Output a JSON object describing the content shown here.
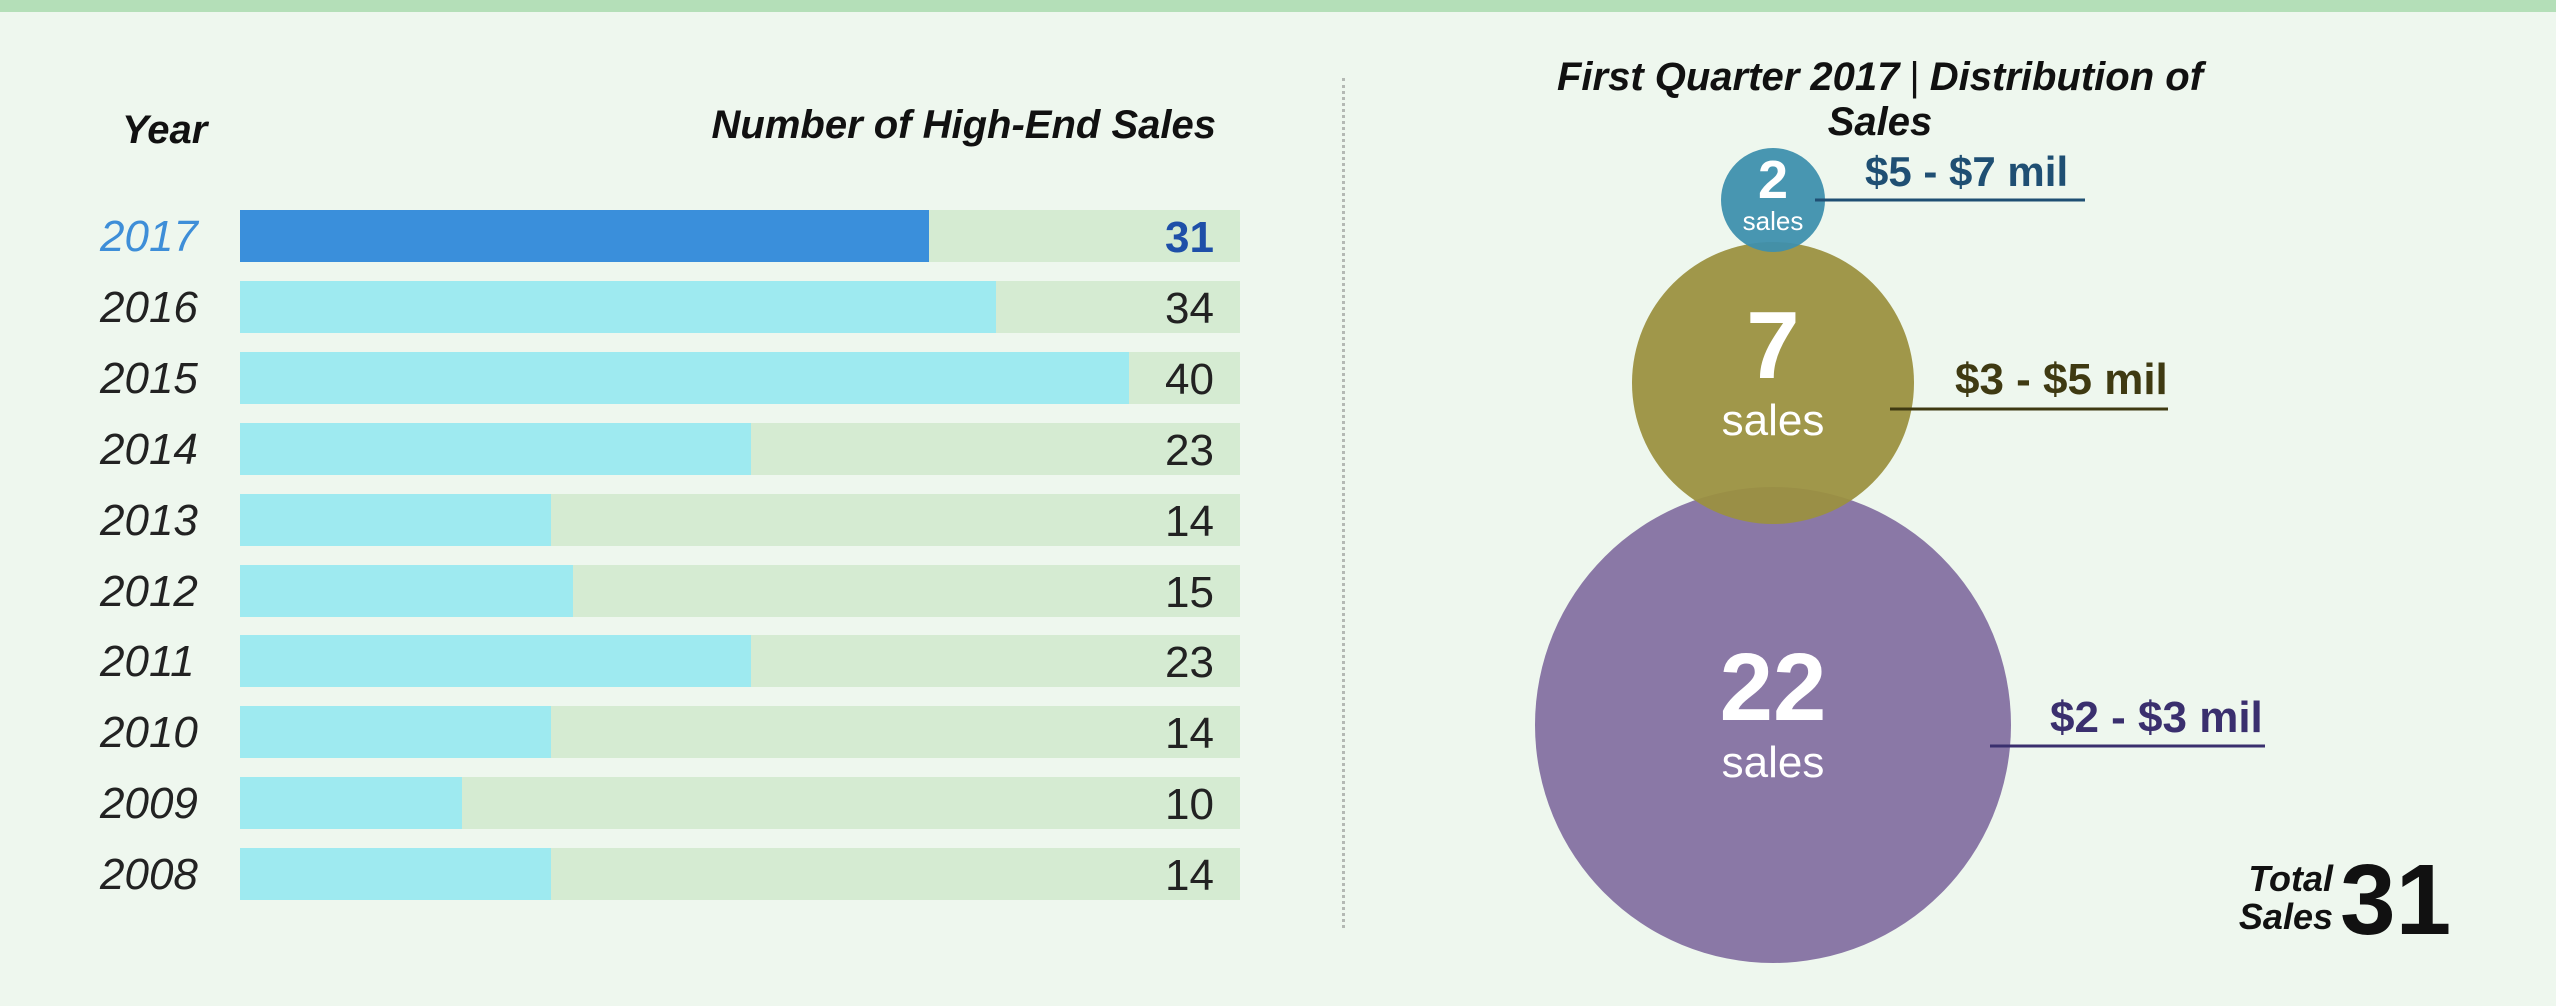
{
  "colors": {
    "background": "#eef7ee",
    "track": "#d5ebd2",
    "bar": "#9eeaf0",
    "bar_highlight": "#3a8fdb",
    "bubble_small": "#3e8fad",
    "bubble_medium": "#9b9140",
    "bubble_large": "#8a78a6"
  },
  "headers": {
    "year": "Year",
    "sales": "Number of High-End Sales"
  },
  "chart_data": [
    {
      "type": "bar",
      "orientation": "horizontal",
      "xlabel": "Number of High-End Sales",
      "ylabel": "Year",
      "categories": [
        "2017",
        "2016",
        "2015",
        "2014",
        "2013",
        "2012",
        "2011",
        "2010",
        "2009",
        "2008"
      ],
      "values": [
        31,
        34,
        40,
        23,
        14,
        15,
        23,
        14,
        10,
        14
      ],
      "highlight": "2017",
      "xlim": [
        0,
        45
      ]
    },
    {
      "type": "bubble",
      "title": "First Quarter 2017",
      "subtitle": "Distribution of Sales",
      "unit_label": "sales",
      "bubbles": [
        {
          "label": "$5 - $7 mil",
          "value": 2,
          "color": "#3e8fad",
          "label_color": "#1f4f73"
        },
        {
          "label": "$3 - $5 mil",
          "value": 7,
          "color": "#9b9140",
          "label_color": "#3f3a12"
        },
        {
          "label": "$2 - $3 mil",
          "value": 22,
          "color": "#8a78a6",
          "label_color": "#3a2f6e"
        }
      ],
      "total_label_line1": "Total",
      "total_label_line2": "Sales",
      "total_value": "31"
    }
  ]
}
